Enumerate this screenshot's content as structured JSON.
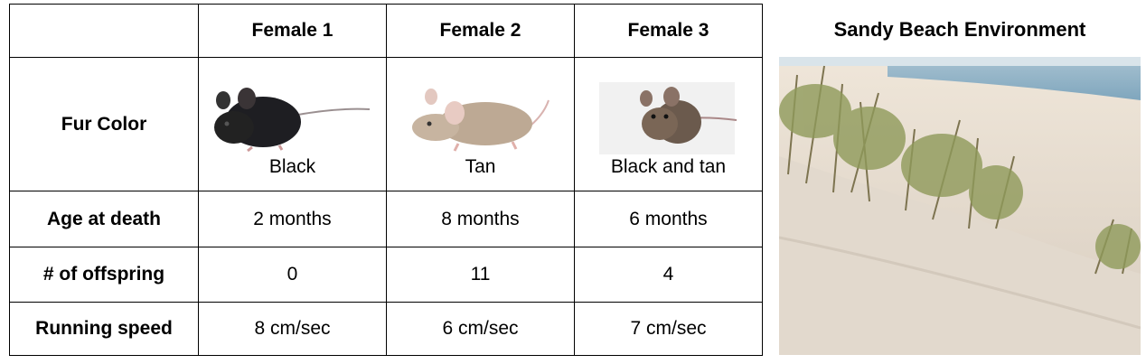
{
  "table": {
    "header": [
      "Female 1",
      "Female 2",
      "Female 3"
    ],
    "rows": [
      {
        "label": "Fur Color",
        "cells": [
          "Black",
          "Tan",
          "Black and tan"
        ]
      },
      {
        "label": "Age at death",
        "cells": [
          "2 months",
          "8 months",
          "6 months"
        ]
      },
      {
        "label": "# of offspring",
        "cells": [
          0,
          11,
          4
        ]
      },
      {
        "label": "Running speed",
        "cells": [
          "8 cm/sec",
          "6 cm/sec",
          "7 cm/sec"
        ]
      }
    ]
  },
  "figure": {
    "title": "Sandy Beach Environment"
  }
}
